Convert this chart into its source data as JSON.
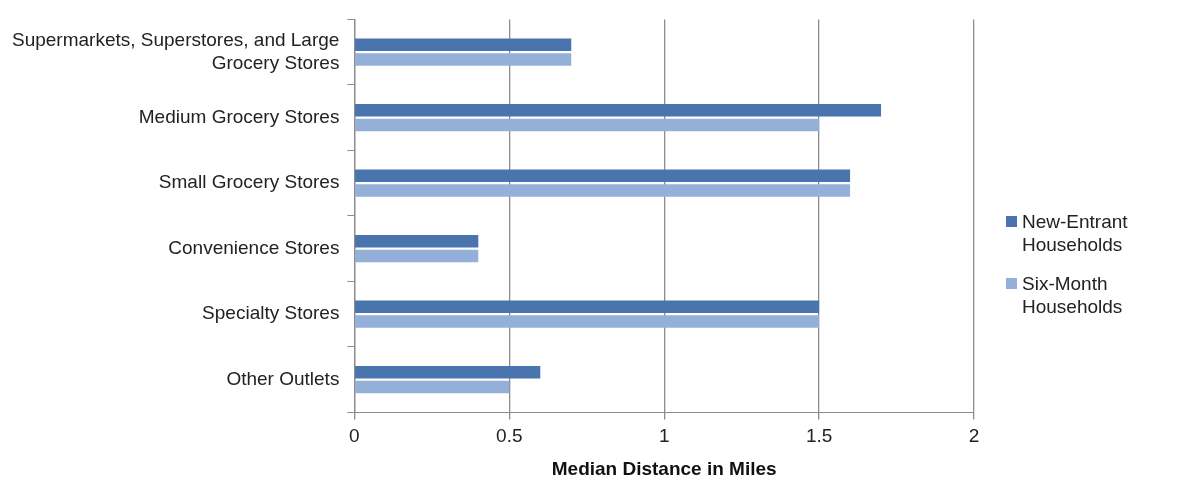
{
  "chart_data": {
    "type": "bar",
    "orientation": "horizontal",
    "xlabel": "Median Distance in Miles",
    "categories": [
      "Supermarkets, Superstores, and Large Grocery Stores",
      "Medium Grocery Stores",
      "Small Grocery Stores",
      "Convenience Stores",
      "Specialty Stores",
      "Other Outlets"
    ],
    "series": [
      {
        "name": "New-Entrant Households",
        "color": "#4a74ad",
        "values": [
          0.7,
          1.7,
          1.6,
          0.4,
          1.5,
          0.6
        ]
      },
      {
        "name": "Six-Month Households",
        "color": "#95b0d8",
        "values": [
          0.7,
          1.5,
          1.6,
          0.4,
          1.5,
          0.5
        ]
      }
    ],
    "xlim": [
      0,
      2
    ],
    "xticks": [
      0,
      0.5,
      1,
      1.5,
      2
    ],
    "grid": "x",
    "legend": "right"
  }
}
